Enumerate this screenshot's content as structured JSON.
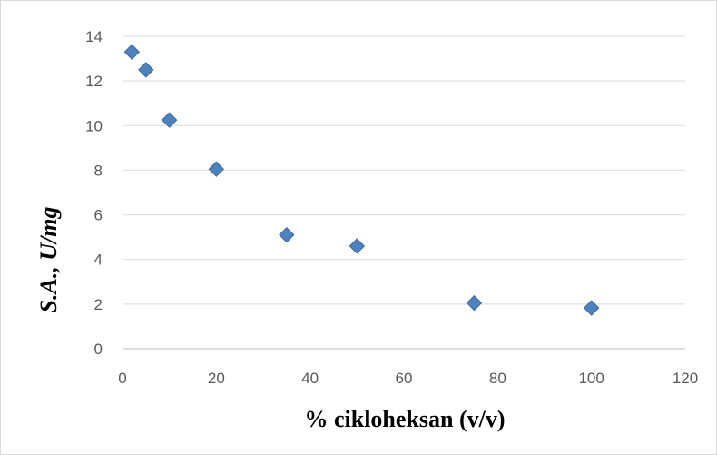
{
  "chart_data": {
    "type": "scatter",
    "title": "",
    "xlabel": "% cikloheksan (v/v)",
    "ylabel": "S.A., U/mg",
    "xlim": [
      0,
      120
    ],
    "ylim": [
      0,
      14
    ],
    "xticks": [
      0,
      20,
      40,
      60,
      80,
      100,
      120
    ],
    "yticks": [
      0,
      2,
      4,
      6,
      8,
      10,
      12,
      14
    ],
    "grid": "horizontal",
    "legend": "none",
    "marker": "diamond",
    "colors": {
      "marker": "#4f81bd",
      "marker_edge": "#3a6a9f",
      "grid": "#d9d9d9",
      "axis": "#bfbfbf"
    },
    "series": [
      {
        "x": [
          2,
          5,
          10,
          20,
          35,
          50,
          75,
          100
        ],
        "y": [
          13.3,
          12.5,
          10.25,
          8.05,
          5.1,
          4.6,
          2.05,
          1.83
        ]
      }
    ]
  }
}
